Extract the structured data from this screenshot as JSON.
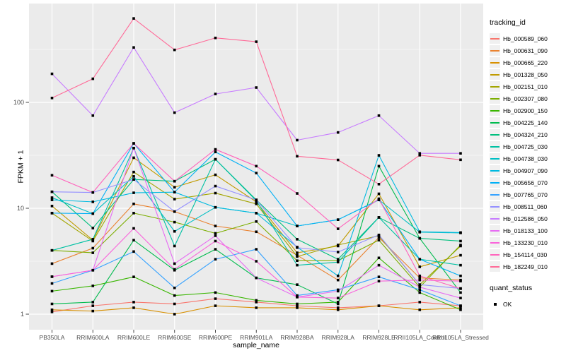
{
  "chart_data": {
    "type": "line",
    "title": "",
    "xlabel": "sample_name",
    "ylabel": "FPKM + 1",
    "y_scale": "log10",
    "y_tick_labels": [
      "1",
      "10",
      "100"
    ],
    "y_ticks": [
      1,
      10,
      100
    ],
    "y_minor_ticks": [
      3.162,
      31.62,
      316.23
    ],
    "ylim": [
      0.93,
      820
    ],
    "grid": "white-on-grey",
    "legend_position": "right",
    "point_shape": "filled-square",
    "point_color": "#000000",
    "categories": [
      "PB350LA",
      "RRIM600LA",
      "RRIM600LE",
      "RRIM600SE",
      "RRIM600PE",
      "RRIM901LA",
      "RRIM928BA",
      "RRIM928LA",
      "RRIM928LE",
      "RRII105LA_Control",
      "RRII105LA_Stressed"
    ],
    "series": [
      {
        "name": "Hb_000589_060",
        "color": "#F8766D",
        "values": [
          1.05,
          1.2,
          1.3,
          1.25,
          1.4,
          1.3,
          1.2,
          1.15,
          1.2,
          1.3,
          1.2
        ]
      },
      {
        "name": "Hb_000631_090",
        "color": "#EA8331",
        "values": [
          3.0,
          4.2,
          11.0,
          9.3,
          6.8,
          6.0,
          3.6,
          2.1,
          5.3,
          2.2,
          2.1
        ]
      },
      {
        "name": "Hb_000665_220",
        "color": "#D89000",
        "values": [
          1.1,
          1.07,
          1.15,
          1.0,
          1.2,
          1.15,
          1.15,
          1.1,
          1.2,
          1.1,
          1.15
        ]
      },
      {
        "name": "Hb_001328_050",
        "color": "#C09B00",
        "values": [
          10.5,
          5.0,
          30.0,
          15.8,
          20.7,
          11.5,
          3.8,
          4.4,
          13.7,
          2.8,
          3.6
        ]
      },
      {
        "name": "Hb_002151_010",
        "color": "#A3A500",
        "values": [
          9.0,
          4.9,
          22.0,
          12.2,
          13.9,
          11.0,
          3.5,
          4.5,
          5.5,
          1.9,
          4.4
        ]
      },
      {
        "name": "Hb_002307_080",
        "color": "#7CAE00",
        "values": [
          4.0,
          3.8,
          9.0,
          7.4,
          5.8,
          7.5,
          3.2,
          3.2,
          5.0,
          1.8,
          4.5
        ]
      },
      {
        "name": "Hb_002900_150",
        "color": "#39B600",
        "values": [
          1.65,
          1.85,
          2.25,
          1.5,
          1.6,
          1.35,
          1.25,
          1.3,
          3.4,
          1.6,
          1.1
        ]
      },
      {
        "name": "Hb_004225_140",
        "color": "#00BB4E",
        "values": [
          1.25,
          1.3,
          5.0,
          2.6,
          4.1,
          2.2,
          1.9,
          1.25,
          25.0,
          5.2,
          1.6
        ]
      },
      {
        "name": "Hb_004324_210",
        "color": "#00BF7D",
        "values": [
          14.3,
          6.5,
          18.7,
          18.0,
          29.0,
          12.0,
          5.1,
          3.3,
          8.2,
          5.2,
          4.9
        ]
      },
      {
        "name": "Hb_004725_030",
        "color": "#00C1A3",
        "values": [
          4.0,
          5.1,
          37.0,
          4.4,
          29.0,
          11.8,
          2.9,
          3.1,
          8.2,
          3.3,
          2.9
        ]
      },
      {
        "name": "Hb_004738_030",
        "color": "#00BFC4",
        "values": [
          12.6,
          8.9,
          20.0,
          6.05,
          10.2,
          9.0,
          6.8,
          7.8,
          12.0,
          5.95,
          5.85
        ]
      },
      {
        "name": "Hb_004907_090",
        "color": "#00BAE0",
        "values": [
          12.0,
          11.5,
          14.0,
          14.2,
          10.2,
          9.0,
          4.3,
          2.3,
          31.6,
          6.0,
          5.9
        ]
      },
      {
        "name": "Hb_005656_070",
        "color": "#00B0F6",
        "values": [
          9.0,
          8.9,
          41.0,
          14.2,
          34.0,
          21.5,
          6.8,
          7.8,
          12.0,
          3.3,
          2.3
        ]
      },
      {
        "name": "Hb_007765_070",
        "color": "#35A2FF",
        "values": [
          1.95,
          2.6,
          3.9,
          1.77,
          3.3,
          4.1,
          1.5,
          1.7,
          2.25,
          1.7,
          1.2
        ]
      },
      {
        "name": "Hb_008511_060",
        "color": "#9590FF",
        "values": [
          14.3,
          14.1,
          18.7,
          9.3,
          16.2,
          12.0,
          4.25,
          3.86,
          5.6,
          1.9,
          1.75
        ]
      },
      {
        "name": "Hb_012586_050",
        "color": "#C77CFF",
        "values": [
          186,
          75,
          330,
          80,
          120,
          138,
          44,
          52,
          75,
          33,
          33
        ]
      },
      {
        "name": "Hb_018133_100",
        "color": "#E76BF3",
        "values": [
          2.26,
          2.6,
          37.0,
          3.0,
          5.5,
          2.2,
          1.45,
          1.65,
          2.9,
          1.8,
          1.42
        ]
      },
      {
        "name": "Hb_133230_010",
        "color": "#FA62DB",
        "values": [
          2.26,
          2.6,
          6.46,
          2.65,
          4.9,
          3.16,
          1.45,
          1.42,
          2.05,
          2.1,
          2.05
        ]
      },
      {
        "name": "Hb_154114_030",
        "color": "#FF62BC",
        "values": [
          20.5,
          14.1,
          41.0,
          18.0,
          36.0,
          25.0,
          13.8,
          6.4,
          12.3,
          2.3,
          1.74
        ]
      },
      {
        "name": "Hb_182249_010",
        "color": "#FF6A98",
        "values": [
          110,
          167,
          620,
          313,
          406,
          374,
          31.0,
          28.6,
          16.9,
          31.7,
          28.7
        ]
      }
    ]
  },
  "legend": {
    "color_title": "tracking_id",
    "shape_title": "quant_status",
    "shape_items": [
      {
        "label": "OK",
        "shape": "filled-square",
        "color": "#000000"
      }
    ]
  },
  "colors": {
    "figure_background": "#FFFFFF",
    "panel_background": "#EBEBEB",
    "grid": "#FFFFFF",
    "axis_text": "#4D4D4D",
    "tick_mark": "#333333"
  }
}
